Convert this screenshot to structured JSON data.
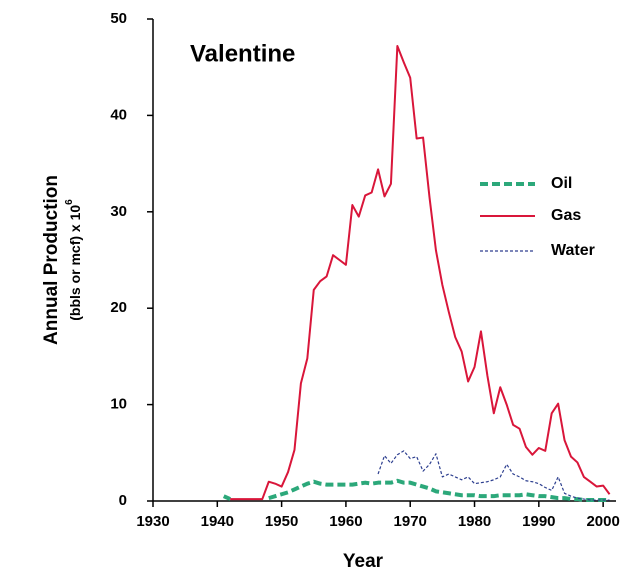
{
  "chart_data": {
    "type": "line",
    "title": "Valentine",
    "x_label": "Year",
    "y_label": "Annual Production",
    "y_label_2": "(bbls or mcf) x 10",
    "y_label_2_exponent": "6",
    "x": [
      1941,
      1942,
      1943,
      1944,
      1945,
      1946,
      1947,
      1948,
      1949,
      1950,
      1951,
      1952,
      1953,
      1954,
      1955,
      1956,
      1957,
      1958,
      1959,
      1960,
      1961,
      1962,
      1963,
      1964,
      1965,
      1966,
      1967,
      1968,
      1969,
      1970,
      1971,
      1972,
      1973,
      1974,
      1975,
      1976,
      1977,
      1978,
      1979,
      1980,
      1981,
      1982,
      1983,
      1984,
      1985,
      1986,
      1987,
      1988,
      1989,
      1990,
      1991,
      1992,
      1993,
      1994,
      1995,
      1996,
      1997,
      1998,
      1999,
      2000,
      2001
    ],
    "series": [
      {
        "name": "Oil",
        "color": "#2ca87a",
        "linestyle": "dashed",
        "values": [
          0.5,
          0.2,
          null,
          null,
          null,
          null,
          null,
          0.3,
          0.5,
          0.7,
          0.9,
          1.2,
          1.5,
          1.8,
          2.0,
          1.8,
          1.7,
          1.7,
          1.7,
          1.7,
          1.7,
          1.8,
          1.9,
          1.8,
          1.9,
          1.9,
          1.9,
          2.1,
          1.9,
          1.9,
          1.7,
          1.5,
          1.3,
          1.0,
          0.9,
          0.8,
          0.7,
          0.6,
          0.6,
          0.6,
          0.5,
          0.5,
          0.5,
          0.6,
          0.6,
          0.6,
          0.6,
          0.7,
          0.6,
          0.5,
          0.5,
          0.4,
          0.3,
          0.3,
          0.2,
          0.2,
          0.1,
          0.1,
          0.1,
          0.1,
          0.1
        ]
      },
      {
        "name": "Gas",
        "color": "#d9163a",
        "linestyle": "solid",
        "values": [
          null,
          0.2,
          0.2,
          0.2,
          0.2,
          0.2,
          0.2,
          2.0,
          1.8,
          1.5,
          3.0,
          5.3,
          12.2,
          14.8,
          21.9,
          22.8,
          23.3,
          25.5,
          25.0,
          24.5,
          30.7,
          29.5,
          31.7,
          32.0,
          34.4,
          31.6,
          32.9,
          47.2,
          45.5,
          43.9,
          37.6,
          37.7,
          31.5,
          26.0,
          22.4,
          19.6,
          17.0,
          15.5,
          12.4,
          13.9,
          17.6,
          13.0,
          9.1,
          11.8,
          10.0,
          7.9,
          7.5,
          5.6,
          4.8,
          5.5,
          5.2,
          9.1,
          10.1,
          6.3,
          4.6,
          4.0,
          2.5,
          2.0,
          1.5,
          1.6,
          0.7
        ]
      },
      {
        "name": "Water",
        "color": "#2d3f8f",
        "linestyle": "dotted",
        "values": [
          null,
          null,
          null,
          null,
          null,
          null,
          null,
          null,
          null,
          null,
          null,
          null,
          null,
          null,
          null,
          null,
          null,
          null,
          null,
          null,
          null,
          null,
          null,
          null,
          2.8,
          4.7,
          3.9,
          4.8,
          5.2,
          4.4,
          4.6,
          3.1,
          3.8,
          4.9,
          2.5,
          2.8,
          2.5,
          2.2,
          2.5,
          1.8,
          1.9,
          2.0,
          2.2,
          2.5,
          3.8,
          2.8,
          2.5,
          2.1,
          2.0,
          1.8,
          1.4,
          1.1,
          2.5,
          0.8,
          0.5,
          0.3,
          0.2,
          0.1,
          0.1,
          0.1,
          0.1
        ]
      }
    ],
    "xlim": [
      1930,
      2002
    ],
    "ylim": [
      0,
      50
    ],
    "xticks": [
      1930,
      1940,
      1950,
      1960,
      1970,
      1980,
      1990,
      2000
    ],
    "yticks": [
      0,
      10,
      20,
      30,
      40,
      50
    ],
    "legend": "right",
    "grid": false
  }
}
